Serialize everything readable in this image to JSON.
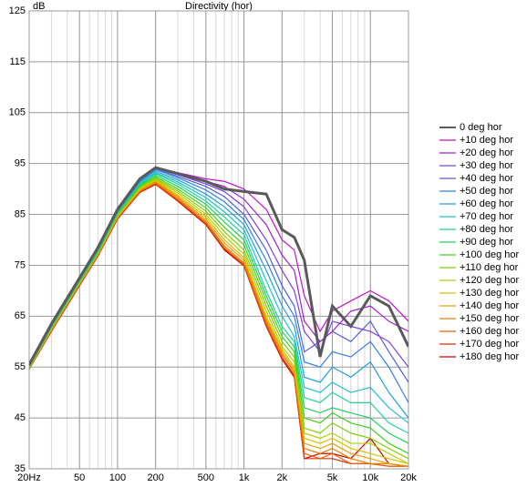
{
  "chart_data": {
    "type": "line",
    "title": "Directivity (hor)",
    "y_label": "dB",
    "log_x": true,
    "grid": true,
    "legend": "right",
    "x": [
      20,
      30,
      50,
      70,
      100,
      150,
      200,
      300,
      500,
      700,
      1000,
      1500,
      2000,
      2500,
      3000,
      4000,
      5000,
      7000,
      10000,
      14000,
      20000
    ],
    "xlim": [
      20,
      20000
    ],
    "xticks": [
      {
        "value": 20,
        "label": "20Hz"
      },
      50,
      100,
      200,
      500,
      {
        "value": 1000,
        "label": "1k"
      },
      {
        "value": 2000,
        "label": "2k"
      },
      {
        "value": 5000,
        "label": "5k"
      },
      {
        "value": 10000,
        "label": "10k"
      },
      {
        "value": 20000,
        "label": "20k"
      }
    ],
    "ylim": [
      35,
      125
    ],
    "yticks": [
      35,
      45,
      55,
      65,
      75,
      85,
      95,
      105,
      115,
      125
    ],
    "series": [
      {
        "name": "0 deg hor",
        "color": "#5a5a5a",
        "values": [
          55.5,
          63.5,
          72.5,
          78.5,
          86,
          92,
          94.2,
          93,
          91.5,
          90,
          89.5,
          89,
          82,
          80.5,
          76,
          57,
          67,
          63,
          69,
          67,
          59
        ]
      },
      {
        "name": "+10 deg hor",
        "color": "#c010c8",
        "values": [
          55.5,
          63.5,
          72.5,
          78.5,
          86,
          92,
          94.3,
          93.2,
          92,
          91.5,
          90,
          86,
          80,
          78,
          69,
          62,
          66,
          68,
          70,
          68,
          64
        ]
      },
      {
        "name": "+20 deg hor",
        "color": "#a020d0",
        "values": [
          55.5,
          63.5,
          72.5,
          78.5,
          86,
          92,
          94.3,
          93,
          91.5,
          90.5,
          88,
          83,
          77,
          74,
          64,
          60,
          62,
          66,
          67,
          64,
          62
        ]
      },
      {
        "name": "+30 deg hor",
        "color": "#8040e0",
        "values": [
          55.4,
          63.4,
          72.4,
          78.4,
          85.9,
          91.9,
          94.2,
          92.8,
          91,
          89.5,
          86.5,
          80,
          74,
          70,
          62,
          58,
          64,
          63,
          62,
          60,
          55
        ]
      },
      {
        "name": "+40 deg hor",
        "color": "#5060e0",
        "values": [
          55.4,
          63.4,
          72.4,
          78.4,
          85.8,
          91.8,
          94,
          92.5,
          90.5,
          88.5,
          85,
          78,
          71,
          67,
          58,
          60,
          62,
          60,
          64,
          58,
          52
        ]
      },
      {
        "name": "+50 deg hor",
        "color": "#3080e0",
        "values": [
          55.3,
          63.3,
          72.3,
          78.2,
          85.7,
          91.6,
          93.8,
          92.2,
          89.8,
          87.5,
          84,
          76,
          69,
          65,
          56,
          55,
          58,
          57,
          60,
          55,
          48
        ]
      },
      {
        "name": "+60 deg hor",
        "color": "#20a0d8",
        "values": [
          55.3,
          63.2,
          72.2,
          78.1,
          85.6,
          91.4,
          93.5,
          91.8,
          89,
          86.5,
          83,
          74,
          67,
          63,
          53,
          52,
          55,
          53,
          56,
          50,
          45
        ]
      },
      {
        "name": "+70 deg hor",
        "color": "#20c0c8",
        "values": [
          55.2,
          63.1,
          72.1,
          78,
          85.5,
          91.2,
          93.2,
          91.4,
          88.3,
          85.5,
          82,
          72,
          65,
          61,
          51,
          50,
          52,
          50,
          51,
          47,
          44
        ]
      },
      {
        "name": "+80 deg hor",
        "color": "#20d0a0",
        "values": [
          55.2,
          63,
          72,
          77.9,
          85.4,
          91,
          93,
          91,
          87.6,
          84.5,
          81,
          70,
          63,
          60,
          49,
          48,
          50,
          48,
          48,
          44,
          42
        ]
      },
      {
        "name": "+90 deg hor",
        "color": "#20d060",
        "values": [
          55.1,
          62.9,
          71.9,
          77.8,
          85.3,
          90.8,
          92.7,
          90.5,
          87,
          83.5,
          80,
          69,
          62,
          59,
          47,
          46,
          47,
          46,
          45,
          42,
          40
        ]
      },
      {
        "name": "+100 deg hor",
        "color": "#40d020",
        "values": [
          55,
          62.8,
          71.8,
          77.6,
          85.1,
          90.6,
          92.4,
          90,
          86.3,
          82.5,
          79,
          68,
          61,
          58,
          45,
          44,
          46,
          44,
          43,
          40,
          38
        ]
      },
      {
        "name": "+110 deg hor",
        "color": "#80d000",
        "values": [
          55,
          62.7,
          71.7,
          77.5,
          85,
          90.4,
          92.1,
          89.6,
          85.6,
          81.6,
          78,
          67,
          60,
          57,
          43,
          42,
          44,
          42,
          41,
          39,
          37
        ]
      },
      {
        "name": "+120 deg hor",
        "color": "#b0d000",
        "values": [
          54.9,
          62.6,
          71.6,
          77.4,
          84.8,
          90.2,
          91.9,
          89.2,
          85,
          80.8,
          77.2,
          66,
          59,
          56,
          42,
          41,
          42,
          40,
          40,
          38,
          36
        ]
      },
      {
        "name": "+130 deg hor",
        "color": "#d8c000",
        "values": [
          54.9,
          62.5,
          71.5,
          77.3,
          84.7,
          90,
          91.7,
          88.8,
          84.5,
          80,
          76.5,
          65,
          58.5,
          55,
          41,
          40,
          41,
          39,
          38,
          37,
          36
        ]
      },
      {
        "name": "+140 deg hor",
        "color": "#e8a000",
        "values": [
          54.8,
          62.4,
          71.4,
          77.2,
          84.5,
          89.8,
          91.5,
          88.5,
          84,
          79.4,
          76,
          64.5,
          58,
          54.5,
          40,
          39,
          40,
          38,
          37,
          36,
          35.5
        ]
      },
      {
        "name": "+150 deg hor",
        "color": "#e88000",
        "values": [
          54.8,
          62.3,
          71.3,
          77.1,
          84.4,
          89.6,
          91.3,
          88.2,
          83.6,
          78.8,
          75.5,
          64,
          57.5,
          54,
          39,
          38,
          39,
          37,
          36,
          36,
          35.5
        ]
      },
      {
        "name": "+160 deg hor",
        "color": "#e86000",
        "values": [
          54.7,
          62.2,
          71.2,
          77,
          84.3,
          89.5,
          91.1,
          87.9,
          83.3,
          78.4,
          75.2,
          63.5,
          57,
          53.5,
          38,
          37,
          38,
          36,
          36,
          35.5,
          35.5
        ]
      },
      {
        "name": "+170 deg hor",
        "color": "#e03000",
        "values": [
          54.7,
          62.1,
          71.1,
          76.9,
          84.2,
          89.4,
          91,
          87.7,
          83.1,
          78.2,
          75,
          63.2,
          56.7,
          53.2,
          37,
          37,
          37,
          36,
          36,
          35.5,
          35.5
        ]
      },
      {
        "name": "+180 deg hor",
        "color": "#d00000",
        "values": [
          54.6,
          62,
          71,
          76.8,
          84.1,
          89.3,
          90.9,
          87.6,
          83,
          78,
          74.9,
          63,
          56.5,
          53,
          37,
          38,
          38,
          37,
          41,
          36,
          35.5
        ]
      }
    ]
  }
}
